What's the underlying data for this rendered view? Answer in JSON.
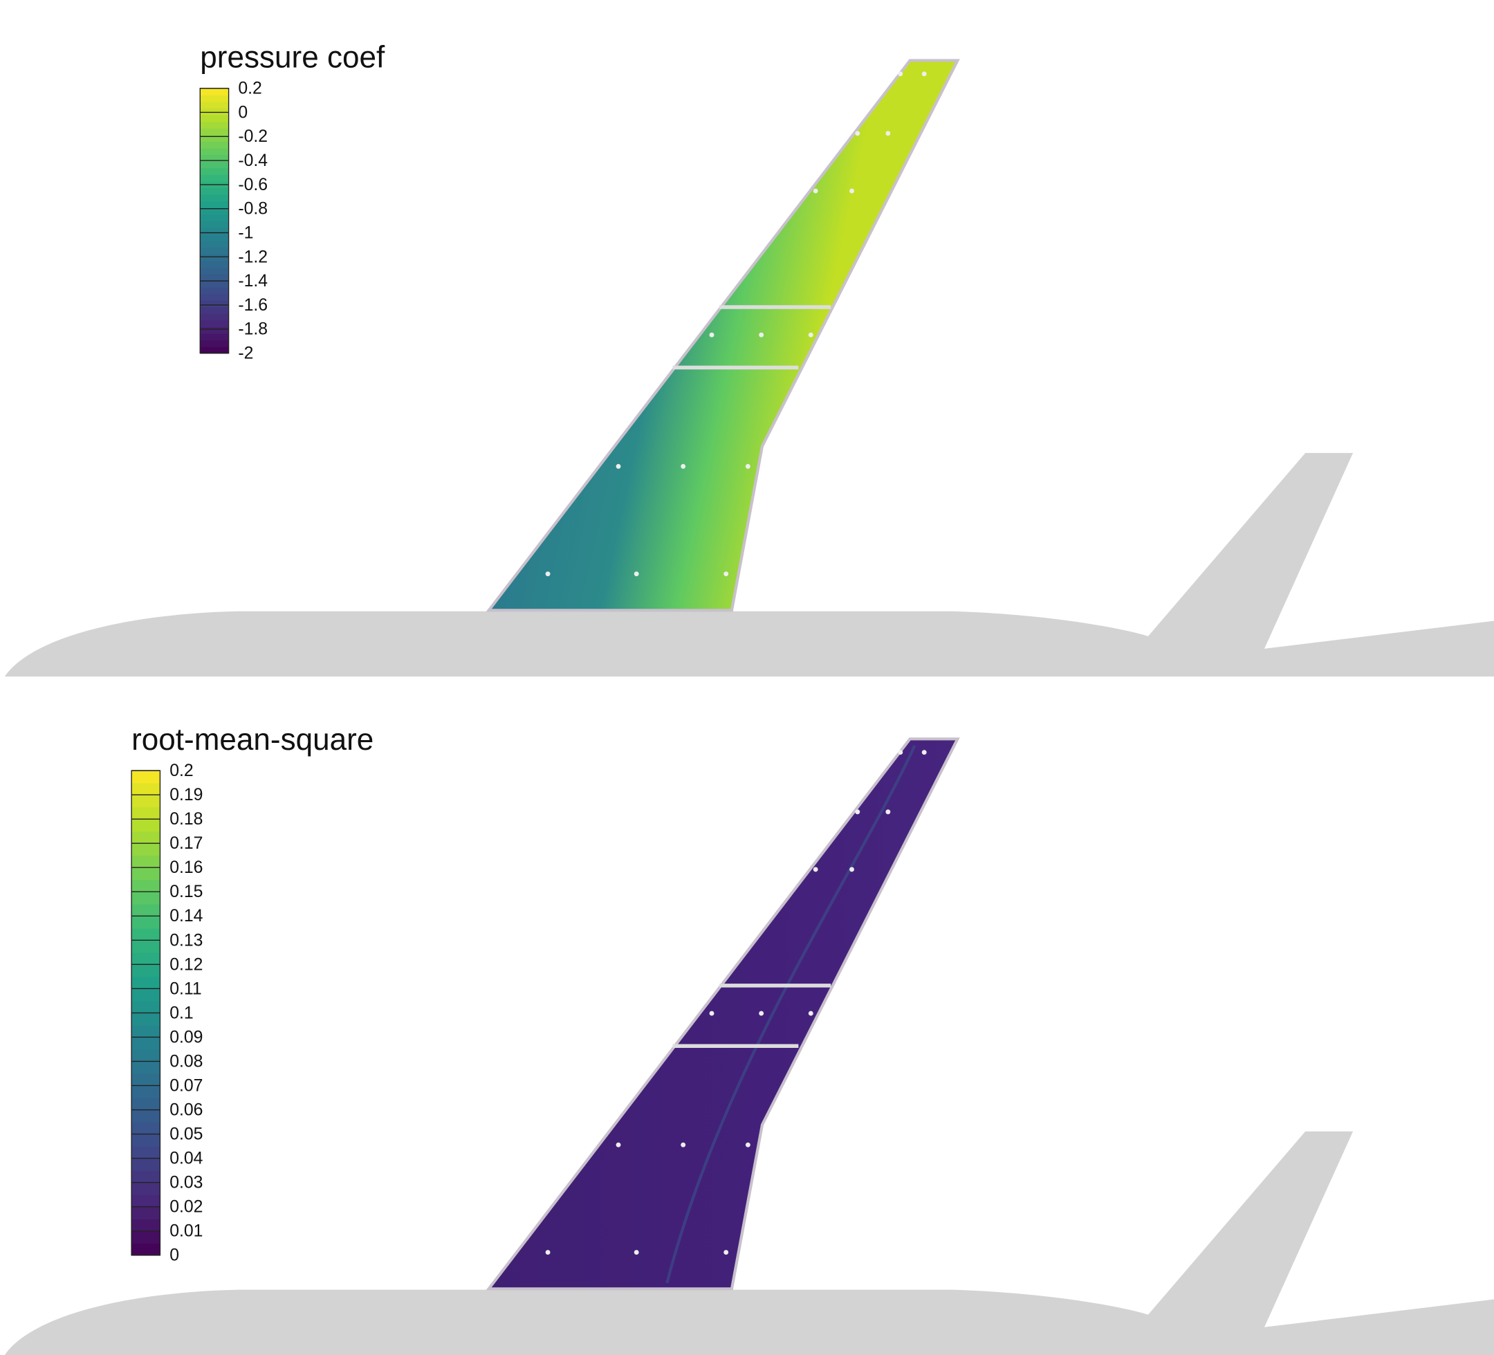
{
  "chart_data": [
    {
      "type": "colormap",
      "title": "pressure coef",
      "colormap": "viridis",
      "clim": [
        -2,
        0.2
      ],
      "ticks": [
        0.2,
        0,
        -0.2,
        -0.4,
        -0.6,
        -0.8,
        -1,
        -1.2,
        -1.4,
        -1.6,
        -1.8,
        -2
      ]
    },
    {
      "type": "colormap",
      "title": "root-mean-square",
      "colormap": "viridis",
      "clim": [
        0,
        0.2
      ],
      "ticks": [
        0.2,
        0.19,
        0.18,
        0.17,
        0.16,
        0.15,
        0.14,
        0.13,
        0.12,
        0.11,
        0.1,
        0.09,
        0.08,
        0.07,
        0.06,
        0.05,
        0.04,
        0.03,
        0.02,
        0.01,
        0
      ]
    }
  ]
}
